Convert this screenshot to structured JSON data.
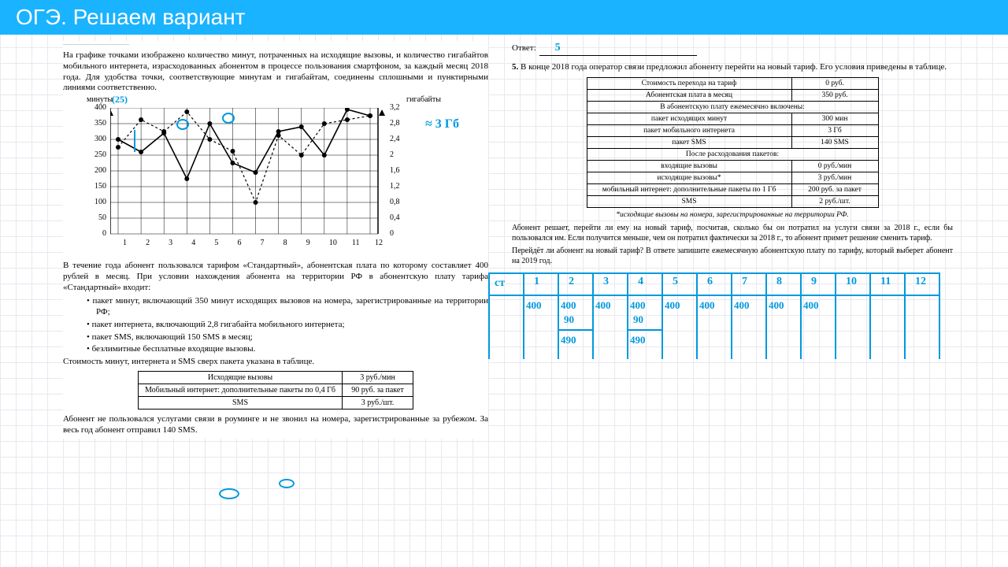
{
  "header": {
    "title": "ОГЭ. Решаем вариант"
  },
  "left": {
    "tiny": "————————————",
    "intro": "На графике точками изображено количество минут, потраченных на исходящие вызовы, и количество гигабайтов мобильного интернета, израсходованных абонентом в процессе пользования смартфоном, за каждый месяц 2018 года. Для удобства точки, соответствующие минутам и гигабайтам, соединены сплошными и пунктирными линиями соответственно.",
    "chart": {
      "ylabel_left": "минуты",
      "ylabel_right": "гигабайты",
      "y_left": [
        0,
        50,
        100,
        150,
        200,
        250,
        300,
        350,
        400
      ],
      "y_right": [
        "0",
        "0,4",
        "0,8",
        "1,2",
        "1,6",
        "2",
        "2,4",
        "2,8",
        "3,2"
      ],
      "x": [
        1,
        2,
        3,
        4,
        5,
        6,
        7,
        8,
        9,
        10,
        11,
        12
      ],
      "minutes": [
        300,
        260,
        320,
        175,
        350,
        225,
        195,
        325,
        340,
        250,
        395,
        375
      ],
      "gb": [
        2.2,
        2.9,
        2.6,
        3.1,
        2.4,
        2.1,
        0.8,
        2.5,
        2.0,
        2.8,
        2.9,
        3.0
      ],
      "grid": "#000",
      "bg": "#fff"
    },
    "ann25": "(25)",
    "ann3gb": "≈ 3 Гб",
    "para2": "В течение года абонент пользовался тарифом «Стандартный», абонентская плата по которому составляет 400 рублей в месяц. При условии нахождения абонента на территории РФ в абонентскую плату тарифа «Стандартный» входит:",
    "bullets": [
      "пакет минут, включающий 350 минут исходящих вызовов на номера, зарегистрированные на территории РФ;",
      "пакет интернета, включающий 2,8 гигабайта мобильного интернета;",
      "пакет SMS, включающий 150 SMS в месяц;",
      "безлимитные бесплатные входящие вызовы."
    ],
    "para3": "Стоимость минут, интернета и SMS сверх пакета указана в таблице.",
    "table1": [
      [
        "Исходящие вызовы",
        "3 руб./мин"
      ],
      [
        "Мобильный интернет: дополнительные пакеты по 0,4 Гб",
        "90 руб. за пакет"
      ],
      [
        "SMS",
        "3 руб./шт."
      ]
    ],
    "para4": "Абонент не пользовался услугами связи в роуминге и не звонил на номера, зарегистрированные за рубежом. За весь год абонент отправил 140 SMS."
  },
  "right": {
    "answer_label": "Ответ:",
    "answer_val": "5",
    "q5num": "5.",
    "q5": "В конце 2018 года оператор связи предложил абоненту перейти на новый тариф. Его условия приведены в таблице.",
    "table2": [
      [
        "Стоимость перехода на тариф",
        "0 руб."
      ],
      [
        "Абонентская плата в месяц",
        "350 руб."
      ],
      [
        "В абонентскую плату ежемесячно включены:",
        ""
      ],
      [
        "пакет исходящих минут",
        "300 мин"
      ],
      [
        "пакет мобильного интернета",
        "3 Гб"
      ],
      [
        "пакет SMS",
        "140 SMS"
      ],
      [
        "После расходования пакетов:",
        ""
      ],
      [
        "входящие вызовы",
        "0 руб./мин"
      ],
      [
        "исходящие вызовы*",
        "3 руб./мин"
      ],
      [
        "мобильный интернет: дополнительные пакеты по 1 Гб",
        "200 руб. за пакет"
      ],
      [
        "SMS",
        "2 руб./шт."
      ]
    ],
    "footnote": "*исходящие вызовы на номера, зарегистрированные на территории РФ.",
    "para5": "Абонент решает, перейти ли ему на новый тариф, посчитав, сколько бы он потратил на услуги связи за 2018 г., если бы пользовался им. Если получится меньше, чем он потратил фактически за 2018 г., то абонент примет решение сменить тариф.",
    "para6": "Перейдёт ли абонент на новый тариф? В ответе запишите ежемесячную абонентскую плату по тарифу, который выберет абонент на 2019 год.",
    "hw": {
      "months": [
        "1",
        "2",
        "3",
        "4",
        "5",
        "6",
        "7",
        "8",
        "9",
        "10",
        "11",
        "12"
      ],
      "row1": [
        "400",
        "400",
        "400",
        "400",
        "400",
        "400",
        "400",
        "400",
        "400",
        "",
        "",
        ""
      ],
      "row2": [
        "",
        "90",
        "",
        "90",
        "",
        "",
        "",
        "",
        "",
        "",
        "",
        ""
      ],
      "row3": [
        "",
        "490",
        "",
        "490",
        "",
        "",
        "",
        "",
        "",
        "",
        "",
        ""
      ],
      "st": "ст"
    }
  }
}
